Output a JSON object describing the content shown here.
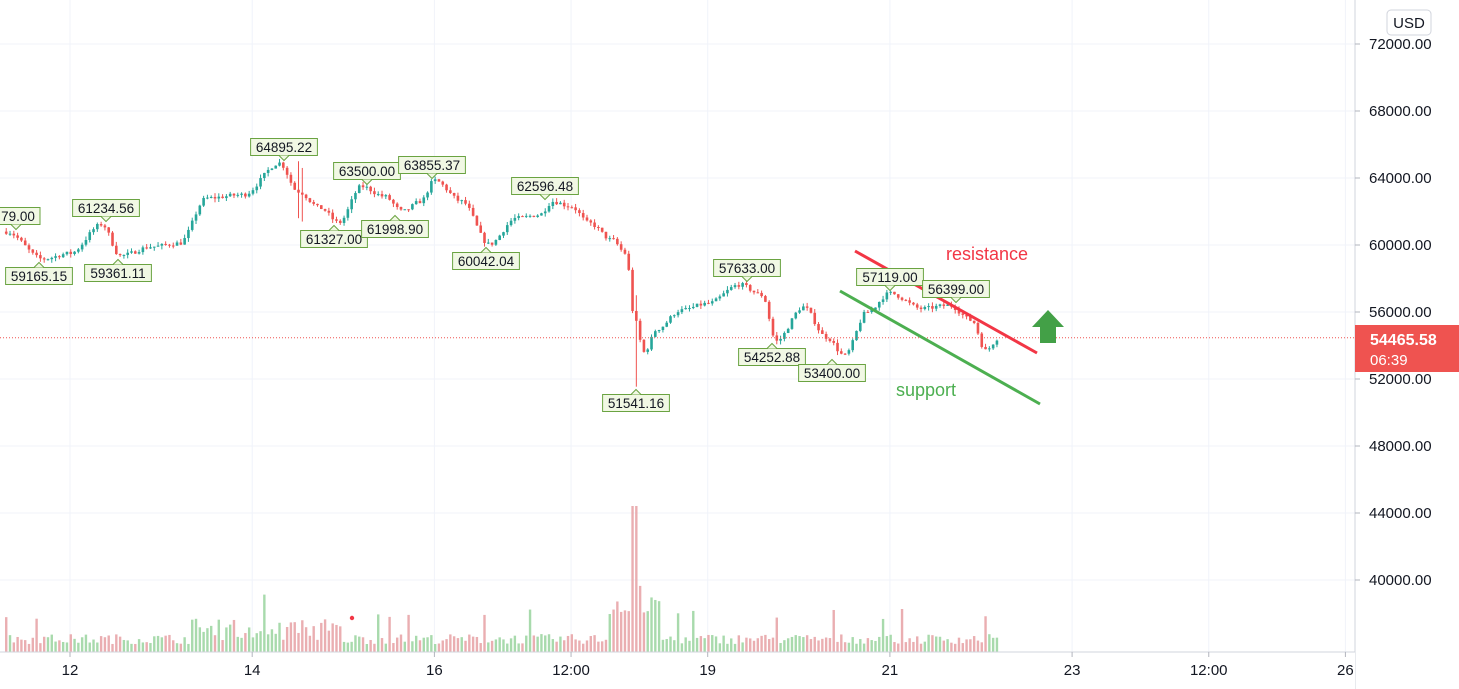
{
  "chart_data": {
    "type": "candlestick",
    "currency": "USD",
    "y_ticks": [
      "72000.00",
      "68000.00",
      "64000.00",
      "60000.00",
      "56000.00",
      "52000.00",
      "48000.00",
      "44000.00",
      "40000.00"
    ],
    "x_ticks": [
      "12",
      "14",
      "16",
      "12:00",
      "19",
      "21",
      "23",
      "12:00",
      "26"
    ],
    "last_price": {
      "value": "54465.58",
      "countdown": "06:39",
      "color": "#ef5350"
    },
    "annotated_points": [
      {
        "label": "79.00",
        "kind": "high"
      },
      {
        "label": "61234.56",
        "kind": "high"
      },
      {
        "label": "59165.15",
        "kind": "low"
      },
      {
        "label": "59361.11",
        "kind": "low"
      },
      {
        "label": "64895.22",
        "kind": "high"
      },
      {
        "label": "63500.00",
        "kind": "high"
      },
      {
        "label": "63855.37",
        "kind": "high"
      },
      {
        "label": "61327.00",
        "kind": "low"
      },
      {
        "label": "61998.90",
        "kind": "low"
      },
      {
        "label": "60042.04",
        "kind": "low"
      },
      {
        "label": "62596.48",
        "kind": "high"
      },
      {
        "label": "51541.16",
        "kind": "low"
      },
      {
        "label": "57633.00",
        "kind": "high"
      },
      {
        "label": "54252.88",
        "kind": "low"
      },
      {
        "label": "53400.00",
        "kind": "low"
      },
      {
        "label": "57119.00",
        "kind": "high"
      },
      {
        "label": "56399.00",
        "kind": "high"
      }
    ],
    "annotations": [
      {
        "text": "resistance",
        "color": "#f23645"
      },
      {
        "text": "support",
        "color": "#4caf50"
      }
    ],
    "colors": {
      "up": "#26a69a",
      "down": "#ef5350",
      "label_bg": "#f1f8e4",
      "label_border": "#6aa341",
      "arrow": "#43a047"
    }
  }
}
